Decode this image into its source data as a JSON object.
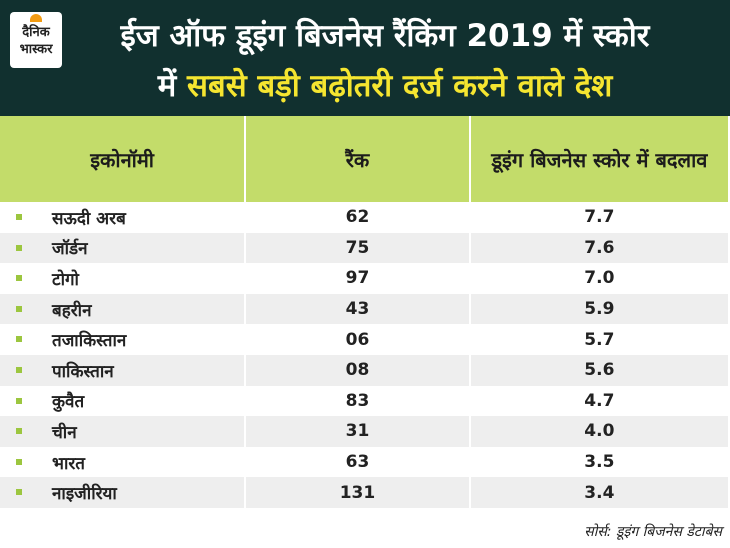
{
  "header": {
    "logo": [
      "दैनिक",
      "भास्कर"
    ],
    "title_line1": "ईज ऑफ डूइंग बिजनेस रैंकिंग 2019 में स्कोर",
    "title_line2_start": "में",
    "title_line2_highlight": "सबसे बड़ी बढ़ोतरी दर्ज करने वाले देश"
  },
  "table": {
    "columns": [
      "इकोनॉमी",
      "रैंक",
      "डूइंग बिजनेस स्कोर में बदलाव"
    ],
    "rows": [
      [
        "सऊदी अरब",
        "62",
        "7.7"
      ],
      [
        "जॉर्डन",
        "75",
        "7.6"
      ],
      [
        "टोगो",
        "97",
        "7.0"
      ],
      [
        "बहरीन",
        "43",
        "5.9"
      ],
      [
        "तजाकिस्तान",
        "06",
        "5.7"
      ],
      [
        "पाकिस्तान",
        "08",
        "5.6"
      ],
      [
        "कुवैत",
        "83",
        "4.7"
      ],
      [
        "चीन",
        "31",
        "4.0"
      ],
      [
        "भारत",
        "63",
        "3.5"
      ],
      [
        "नाइजीरिया",
        "131",
        "3.4"
      ]
    ]
  },
  "source": "सोर्स: डूइंग बिजनेस डेटाबेस"
}
